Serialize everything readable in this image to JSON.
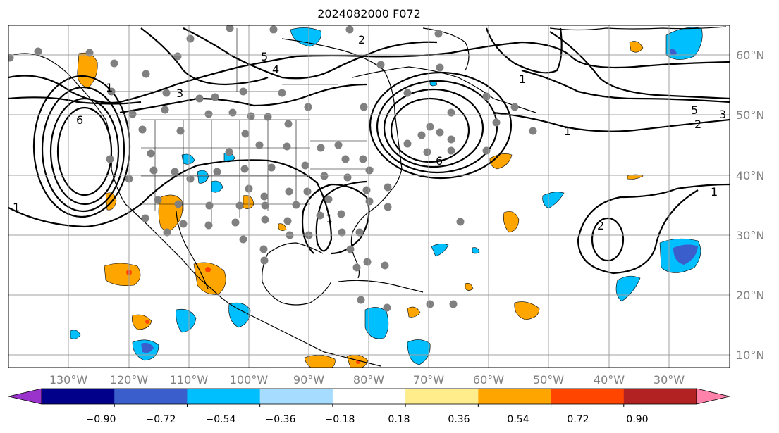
{
  "title": "2024082000 F072",
  "lat_labels": [
    "60°N",
    "50°N",
    "40°N",
    "30°N",
    "20°N",
    "10°N"
  ],
  "lon_labels": [
    "130°W",
    "120°W",
    "110°W",
    "100°W",
    "90°W",
    "80°W",
    "70°W",
    "60°W",
    "50°W",
    "40°W",
    "30°W"
  ],
  "colorbar": {
    "colors": [
      "#9933cc",
      "#00008b",
      "#3a5fcd",
      "#00bfff",
      "#a6dcff",
      "#ffffff",
      "#ffec8b",
      "#ffa500",
      "#ff4500",
      "#b22222",
      "#ff82ab"
    ],
    "labels": [
      "−0.90",
      "−0.72",
      "−0.54",
      "−0.36",
      "−0.18",
      "0.18",
      "0.36",
      "0.54",
      "0.72",
      "0.90"
    ]
  },
  "contour_labels": [
    "1",
    "1",
    "1",
    "1",
    "1",
    "2",
    "2",
    "3",
    "3",
    "4",
    "5",
    "5",
    "6",
    "6",
    "1",
    "2"
  ]
}
